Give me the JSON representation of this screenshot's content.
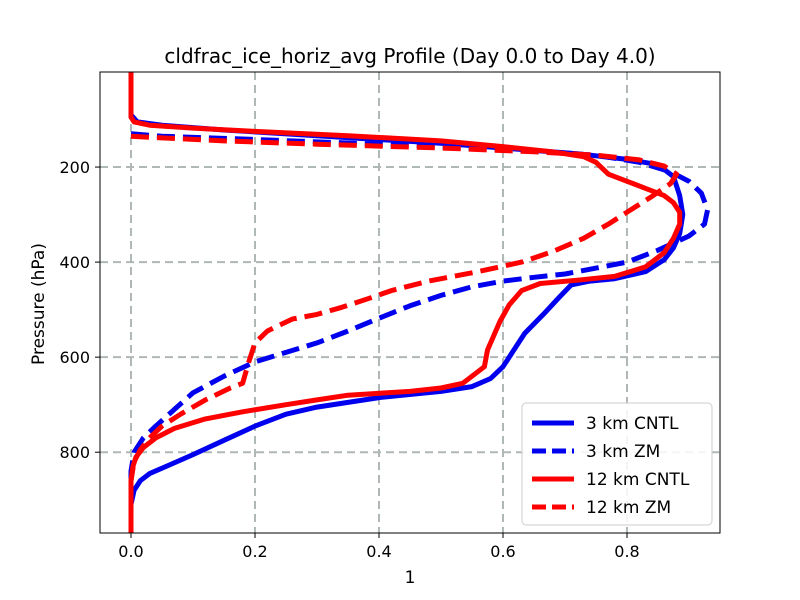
{
  "chart_data": {
    "type": "line",
    "title": "cldfrac_ice_horiz_avg Profile (Day 0.0 to Day 4.0)",
    "xlabel": "1",
    "ylabel": "Pressure (hPa)",
    "xlim": [
      -0.05,
      0.95
    ],
    "ylim": [
      970,
      0
    ],
    "xticks": [
      0.0,
      0.2,
      0.4,
      0.6,
      0.8
    ],
    "xtick_labels": [
      "0.0",
      "0.2",
      "0.4",
      "0.6",
      "0.8"
    ],
    "yticks": [
      200,
      400,
      600,
      800
    ],
    "ytick_labels": [
      "200",
      "400",
      "600",
      "800"
    ],
    "grid": true,
    "legend_position": "lower-right",
    "series": [
      {
        "name": "3 km CNTL",
        "color": "#0000ee",
        "dash": "solid",
        "points": [
          [
            0,
            0
          ],
          [
            0,
            90
          ],
          [
            0.01,
            105
          ],
          [
            0.05,
            112
          ],
          [
            0.15,
            122
          ],
          [
            0.3,
            134
          ],
          [
            0.5,
            150
          ],
          [
            0.62,
            162
          ],
          [
            0.72,
            172
          ],
          [
            0.8,
            184
          ],
          [
            0.85,
            195
          ],
          [
            0.875,
            220
          ],
          [
            0.885,
            260
          ],
          [
            0.89,
            300
          ],
          [
            0.885,
            340
          ],
          [
            0.875,
            370
          ],
          [
            0.86,
            395
          ],
          [
            0.83,
            420
          ],
          [
            0.78,
            435
          ],
          [
            0.74,
            440
          ],
          [
            0.71,
            448
          ],
          [
            0.69,
            475
          ],
          [
            0.665,
            510
          ],
          [
            0.65,
            530
          ],
          [
            0.635,
            550
          ],
          [
            0.62,
            580
          ],
          [
            0.6,
            620
          ],
          [
            0.58,
            645
          ],
          [
            0.55,
            662
          ],
          [
            0.5,
            672
          ],
          [
            0.4,
            685
          ],
          [
            0.3,
            705
          ],
          [
            0.25,
            720
          ],
          [
            0.2,
            745
          ],
          [
            0.15,
            775
          ],
          [
            0.1,
            805
          ],
          [
            0.06,
            828
          ],
          [
            0.03,
            845
          ],
          [
            0.015,
            860
          ],
          [
            0.005,
            880
          ],
          [
            0,
            910
          ],
          [
            0,
            970
          ]
        ]
      },
      {
        "name": "3 km ZM",
        "color": "#0000ee",
        "dash": "dashed",
        "points": [
          [
            0,
            130
          ],
          [
            0.05,
            135
          ],
          [
            0.2,
            142
          ],
          [
            0.4,
            152
          ],
          [
            0.6,
            163
          ],
          [
            0.75,
            175
          ],
          [
            0.82,
            190
          ],
          [
            0.87,
            210
          ],
          [
            0.9,
            230
          ],
          [
            0.92,
            255
          ],
          [
            0.93,
            290
          ],
          [
            0.925,
            320
          ],
          [
            0.9,
            345
          ],
          [
            0.85,
            375
          ],
          [
            0.8,
            400
          ],
          [
            0.7,
            425
          ],
          [
            0.65,
            432
          ],
          [
            0.6,
            440
          ],
          [
            0.55,
            452
          ],
          [
            0.5,
            470
          ],
          [
            0.45,
            492
          ],
          [
            0.4,
            518
          ],
          [
            0.35,
            545
          ],
          [
            0.3,
            570
          ],
          [
            0.25,
            590
          ],
          [
            0.2,
            610
          ],
          [
            0.15,
            640
          ],
          [
            0.1,
            675
          ],
          [
            0.07,
            710
          ],
          [
            0.04,
            745
          ],
          [
            0.02,
            770
          ],
          [
            0.005,
            800
          ],
          [
            0,
            840
          ],
          [
            0,
            970
          ]
        ]
      },
      {
        "name": "12 km CNTL",
        "color": "#ff0000",
        "dash": "solid",
        "points": [
          [
            0,
            0
          ],
          [
            0,
            95
          ],
          [
            0.005,
            105
          ],
          [
            0.03,
            112
          ],
          [
            0.1,
            118
          ],
          [
            0.2,
            125
          ],
          [
            0.35,
            134
          ],
          [
            0.5,
            145
          ],
          [
            0.6,
            157
          ],
          [
            0.68,
            168
          ],
          [
            0.73,
            178
          ],
          [
            0.75,
            190
          ],
          [
            0.77,
            215
          ],
          [
            0.8,
            230
          ],
          [
            0.83,
            245
          ],
          [
            0.86,
            260
          ],
          [
            0.875,
            275
          ],
          [
            0.885,
            295
          ],
          [
            0.885,
            320
          ],
          [
            0.875,
            350
          ],
          [
            0.86,
            380
          ],
          [
            0.83,
            410
          ],
          [
            0.78,
            430
          ],
          [
            0.72,
            438
          ],
          [
            0.66,
            445
          ],
          [
            0.63,
            460
          ],
          [
            0.61,
            490
          ],
          [
            0.595,
            525
          ],
          [
            0.585,
            555
          ],
          [
            0.575,
            585
          ],
          [
            0.57,
            620
          ],
          [
            0.55,
            640
          ],
          [
            0.535,
            655
          ],
          [
            0.5,
            665
          ],
          [
            0.45,
            672
          ],
          [
            0.35,
            680
          ],
          [
            0.3,
            690
          ],
          [
            0.25,
            700
          ],
          [
            0.18,
            715
          ],
          [
            0.12,
            730
          ],
          [
            0.07,
            750
          ],
          [
            0.04,
            770
          ],
          [
            0.02,
            790
          ],
          [
            0.008,
            810
          ],
          [
            0.003,
            830
          ],
          [
            0,
            860
          ],
          [
            0,
            970
          ]
        ]
      },
      {
        "name": "12 km ZM",
        "color": "#ff0000",
        "dash": "dashed",
        "points": [
          [
            0,
            135
          ],
          [
            0.04,
            138
          ],
          [
            0.15,
            145
          ],
          [
            0.3,
            152
          ],
          [
            0.5,
            160
          ],
          [
            0.65,
            168
          ],
          [
            0.75,
            175
          ],
          [
            0.82,
            185
          ],
          [
            0.86,
            198
          ],
          [
            0.88,
            215
          ],
          [
            0.87,
            235
          ],
          [
            0.84,
            262
          ],
          [
            0.8,
            295
          ],
          [
            0.77,
            320
          ],
          [
            0.73,
            350
          ],
          [
            0.68,
            378
          ],
          [
            0.63,
            400
          ],
          [
            0.56,
            420
          ],
          [
            0.48,
            440
          ],
          [
            0.42,
            460
          ],
          [
            0.38,
            478
          ],
          [
            0.34,
            495
          ],
          [
            0.3,
            510
          ],
          [
            0.26,
            520
          ],
          [
            0.22,
            545
          ],
          [
            0.2,
            570
          ],
          [
            0.19,
            610
          ],
          [
            0.18,
            655
          ],
          [
            0.16,
            665
          ],
          [
            0.12,
            690
          ],
          [
            0.08,
            720
          ],
          [
            0.05,
            745
          ],
          [
            0.03,
            770
          ],
          [
            0.015,
            795
          ],
          [
            0.005,
            820
          ],
          [
            0,
            860
          ],
          [
            0,
            970
          ]
        ]
      }
    ]
  }
}
